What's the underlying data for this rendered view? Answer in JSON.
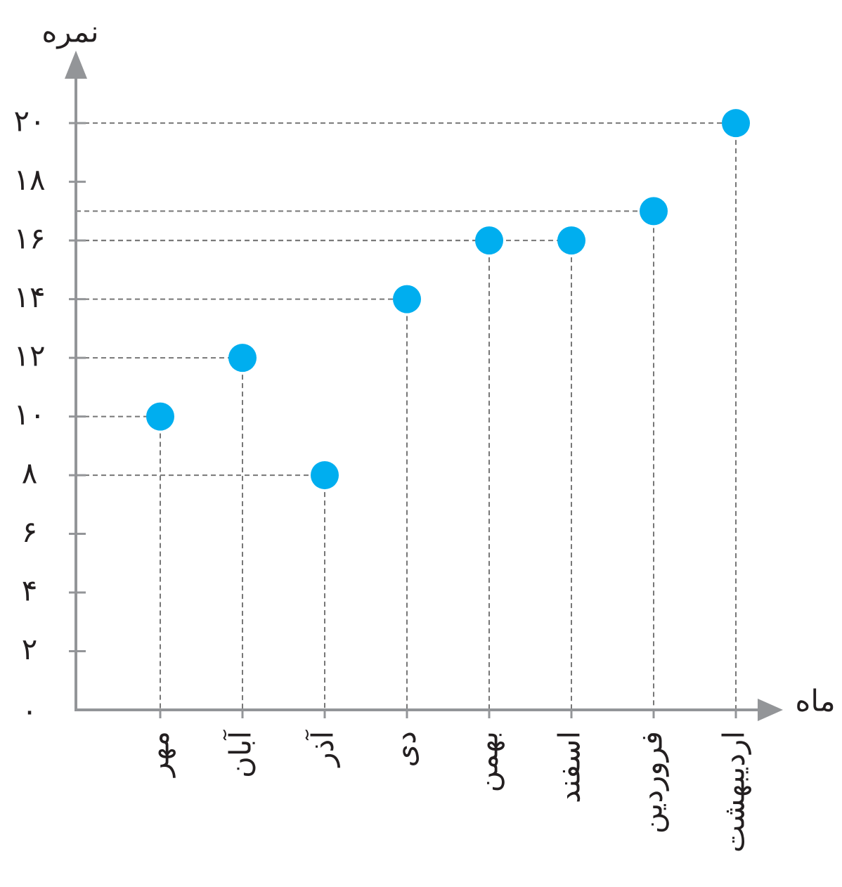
{
  "chart_data": {
    "type": "scatter",
    "y_label": "نمره",
    "x_label": "ماه",
    "categories": [
      "مهر",
      "آبان",
      "آذر",
      "دی",
      "بهمن",
      "اسفند",
      "فروردین",
      "اردیبهشت"
    ],
    "values": [
      10,
      12,
      8,
      14,
      16,
      16,
      17,
      20
    ],
    "color": "#00aeef",
    "ylim": [
      0,
      22.4
    ],
    "yticks": [
      {
        "value": 0,
        "label": "٠"
      },
      {
        "value": 2,
        "label": "۲"
      },
      {
        "value": 4,
        "label": "۴"
      },
      {
        "value": 6,
        "label": "۶"
      },
      {
        "value": 8,
        "label": "۸"
      },
      {
        "value": 10,
        "label": "۱٠"
      },
      {
        "value": 12,
        "label": "۱۲"
      },
      {
        "value": 14,
        "label": "۱۴"
      },
      {
        "value": 16,
        "label": "۱۶"
      },
      {
        "value": 18,
        "label": "۱۸"
      },
      {
        "value": 20,
        "label": "۲٠"
      }
    ],
    "guides": true
  }
}
